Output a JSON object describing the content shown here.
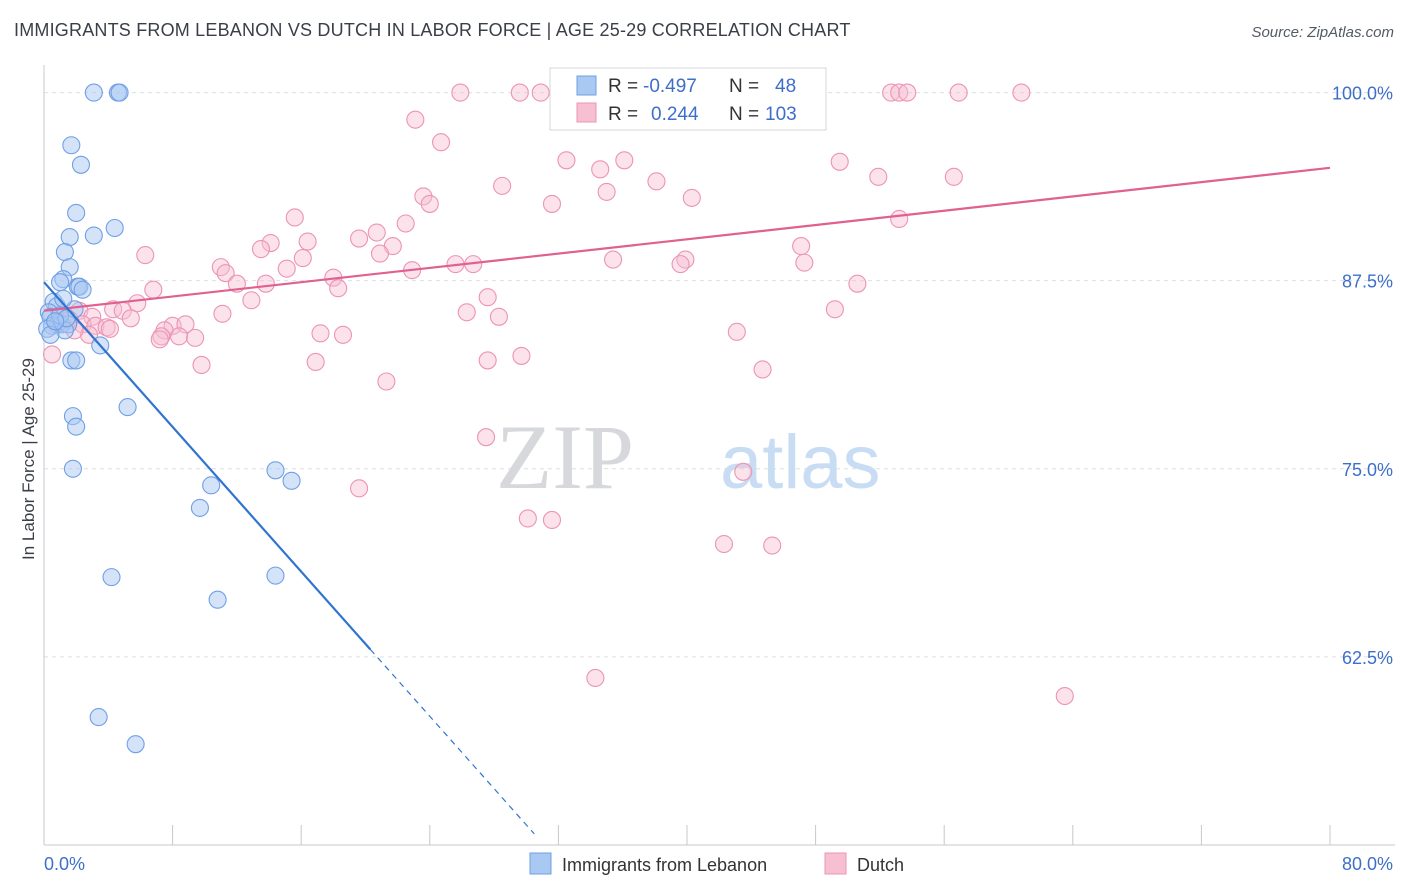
{
  "title": "IMMIGRANTS FROM LEBANON VS DUTCH IN LABOR FORCE | AGE 25-29 CORRELATION CHART",
  "source": "Source: ZipAtlas.com",
  "watermark": {
    "zip": "ZIP",
    "atlas": "atlas"
  },
  "legend_stats": [
    {
      "r_label": "R =",
      "r_value": "-0.497",
      "n_label": "N =",
      "n_value": "48",
      "color": "#6fa0e6"
    },
    {
      "r_label": "R =",
      "r_value": "0.244",
      "n_label": "N =",
      "n_value": "103",
      "color": "#f08cb0"
    }
  ],
  "colors": {
    "lebanon_fill": "#a9c8f2",
    "lebanon_stroke": "#6fa0e6",
    "lebanon_line": "#2f74d0",
    "dutch_fill": "#f6bfd2",
    "dutch_stroke": "#ec94b5",
    "dutch_line": "#e0608f",
    "value_text": "#3d6fc9",
    "grid": "#dcdfe4"
  },
  "chart_data": {
    "type": "scatter",
    "title": "IMMIGRANTS FROM LEBANON VS DUTCH IN LABOR FORCE | AGE 25-29 CORRELATION CHART",
    "xlabel": "",
    "ylabel": "In Labor Force | Age 25-29",
    "xlim": [
      0,
      80
    ],
    "ylim": [
      50,
      101.5
    ],
    "x_tick_labels": [
      "0.0%",
      "80.0%"
    ],
    "y_ticks": [
      62.5,
      75.0,
      87.5,
      100.0
    ],
    "y_tick_labels": [
      "62.5%",
      "75.0%",
      "87.5%",
      "100.0%"
    ],
    "grid": true,
    "legend": "bottom-center",
    "series": [
      {
        "name": "Immigrants from Lebanon",
        "r": -0.497,
        "n": 48,
        "trend": {
          "x0": 0,
          "y0": 87.4,
          "x1": 20.3,
          "y1": 63.0,
          "dashed_to_x": 30.5
        },
        "points": [
          [
            3.1,
            100.0
          ],
          [
            4.6,
            100.0
          ],
          [
            4.7,
            100.0
          ],
          [
            1.7,
            96.5
          ],
          [
            2.3,
            95.2
          ],
          [
            2.0,
            92.0
          ],
          [
            4.4,
            91.0
          ],
          [
            1.6,
            90.4
          ],
          [
            3.1,
            90.5
          ],
          [
            1.3,
            89.4
          ],
          [
            1.6,
            88.4
          ],
          [
            1.2,
            87.6
          ],
          [
            1.0,
            87.4
          ],
          [
            2.1,
            87.1
          ],
          [
            2.2,
            87.1
          ],
          [
            0.6,
            86.1
          ],
          [
            0.8,
            85.8
          ],
          [
            1.9,
            85.6
          ],
          [
            0.3,
            85.4
          ],
          [
            0.4,
            85.1
          ],
          [
            0.9,
            84.7
          ],
          [
            1.1,
            84.6
          ],
          [
            1.5,
            84.6
          ],
          [
            0.5,
            84.5
          ],
          [
            0.2,
            84.3
          ],
          [
            1.3,
            84.2
          ],
          [
            0.4,
            83.9
          ],
          [
            3.5,
            83.2
          ],
          [
            1.7,
            82.2
          ],
          [
            2.0,
            82.2
          ],
          [
            5.2,
            79.1
          ],
          [
            1.8,
            78.5
          ],
          [
            2.0,
            77.8
          ],
          [
            1.8,
            75.0
          ],
          [
            10.4,
            73.9
          ],
          [
            14.4,
            74.9
          ],
          [
            15.4,
            74.2
          ],
          [
            9.7,
            72.4
          ],
          [
            4.2,
            67.8
          ],
          [
            14.4,
            67.9
          ],
          [
            10.8,
            66.3
          ],
          [
            3.4,
            58.5
          ],
          [
            5.7,
            56.7
          ],
          [
            1.0,
            85.2
          ],
          [
            1.4,
            85.0
          ],
          [
            0.7,
            84.8
          ],
          [
            2.4,
            86.9
          ],
          [
            1.2,
            86.3
          ]
        ]
      },
      {
        "name": "Dutch",
        "r": 0.244,
        "n": 103,
        "trend": {
          "x0": 0,
          "y0": 85.5,
          "x1": 80,
          "y1": 95.0
        },
        "points": [
          [
            25.9,
            100.0
          ],
          [
            29.6,
            100.0
          ],
          [
            30.9,
            100.0
          ],
          [
            33.2,
            100.0
          ],
          [
            37.9,
            100.0
          ],
          [
            46.2,
            100.0
          ],
          [
            52.7,
            100.0
          ],
          [
            53.2,
            100.0
          ],
          [
            53.7,
            100.0
          ],
          [
            56.9,
            100.0
          ],
          [
            60.8,
            100.0
          ],
          [
            23.1,
            98.2
          ],
          [
            24.7,
            96.7
          ],
          [
            32.5,
            95.5
          ],
          [
            36.1,
            95.5
          ],
          [
            34.6,
            94.9
          ],
          [
            49.5,
            95.4
          ],
          [
            51.9,
            94.4
          ],
          [
            56.6,
            94.4
          ],
          [
            38.1,
            94.1
          ],
          [
            28.5,
            93.8
          ],
          [
            35.0,
            93.4
          ],
          [
            40.3,
            93.0
          ],
          [
            23.6,
            93.1
          ],
          [
            31.6,
            92.6
          ],
          [
            24.0,
            92.6
          ],
          [
            15.6,
            91.7
          ],
          [
            22.5,
            91.3
          ],
          [
            53.2,
            91.6
          ],
          [
            20.7,
            90.7
          ],
          [
            19.6,
            90.3
          ],
          [
            16.4,
            90.1
          ],
          [
            14.1,
            90.0
          ],
          [
            13.5,
            89.6
          ],
          [
            21.7,
            89.8
          ],
          [
            20.9,
            89.3
          ],
          [
            47.1,
            89.8
          ],
          [
            16.1,
            89.0
          ],
          [
            6.3,
            89.2
          ],
          [
            35.4,
            88.9
          ],
          [
            39.9,
            88.9
          ],
          [
            39.6,
            88.6
          ],
          [
            25.6,
            88.6
          ],
          [
            26.7,
            88.6
          ],
          [
            47.3,
            88.7
          ],
          [
            11.0,
            88.4
          ],
          [
            15.1,
            88.3
          ],
          [
            22.9,
            88.2
          ],
          [
            11.3,
            88.0
          ],
          [
            18.0,
            87.7
          ],
          [
            12.0,
            87.3
          ],
          [
            13.8,
            87.3
          ],
          [
            18.3,
            87.0
          ],
          [
            50.6,
            87.3
          ],
          [
            6.8,
            86.9
          ],
          [
            27.6,
            86.4
          ],
          [
            12.9,
            86.2
          ],
          [
            5.8,
            86.0
          ],
          [
            49.2,
            85.6
          ],
          [
            26.3,
            85.4
          ],
          [
            28.3,
            85.1
          ],
          [
            11.1,
            85.3
          ],
          [
            4.3,
            85.6
          ],
          [
            4.9,
            85.5
          ],
          [
            2.2,
            85.5
          ],
          [
            3.0,
            85.1
          ],
          [
            5.4,
            85.0
          ],
          [
            1.3,
            85.2
          ],
          [
            0.9,
            84.8
          ],
          [
            2.4,
            84.6
          ],
          [
            3.2,
            84.5
          ],
          [
            3.9,
            84.4
          ],
          [
            8.0,
            84.5
          ],
          [
            8.8,
            84.6
          ],
          [
            4.1,
            84.3
          ],
          [
            7.5,
            84.2
          ],
          [
            7.3,
            83.8
          ],
          [
            8.4,
            83.8
          ],
          [
            9.4,
            83.7
          ],
          [
            0.8,
            84.6
          ],
          [
            1.6,
            84.9
          ],
          [
            17.2,
            84.0
          ],
          [
            18.6,
            83.9
          ],
          [
            43.1,
            84.1
          ],
          [
            7.2,
            83.6
          ],
          [
            2.8,
            83.9
          ],
          [
            0.5,
            82.6
          ],
          [
            29.7,
            82.5
          ],
          [
            27.6,
            82.2
          ],
          [
            16.9,
            82.1
          ],
          [
            9.8,
            81.9
          ],
          [
            44.7,
            81.6
          ],
          [
            21.3,
            80.8
          ],
          [
            27.5,
            77.1
          ],
          [
            43.5,
            74.8
          ],
          [
            19.6,
            73.7
          ],
          [
            30.1,
            71.7
          ],
          [
            31.6,
            71.6
          ],
          [
            42.3,
            70.0
          ],
          [
            45.3,
            69.9
          ],
          [
            34.3,
            61.1
          ],
          [
            63.5,
            59.9
          ],
          [
            1.9,
            84.2
          ]
        ]
      }
    ]
  }
}
